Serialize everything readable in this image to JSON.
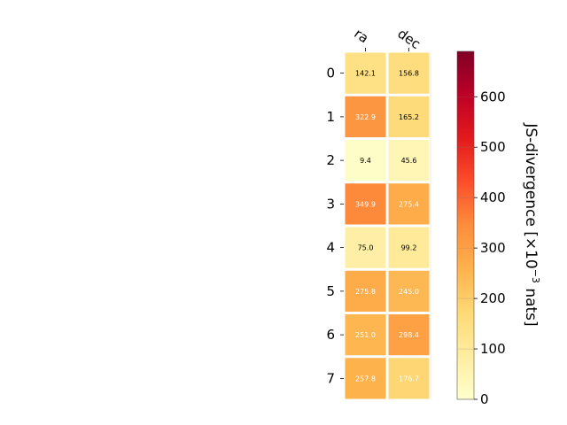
{
  "chart_data": {
    "type": "heatmap",
    "title": "",
    "columns": [
      "ra",
      "dec"
    ],
    "rows": [
      "0",
      "1",
      "2",
      "3",
      "4",
      "5",
      "6",
      "7"
    ],
    "values": [
      [
        142.1,
        156.8
      ],
      [
        322.9,
        165.2
      ],
      [
        9.4,
        45.6
      ],
      [
        349.9,
        275.4
      ],
      [
        75.0,
        99.2
      ],
      [
        275.8,
        245.0
      ],
      [
        251.0,
        298.4
      ],
      [
        257.8,
        176.7
      ]
    ],
    "colorbar": {
      "label_prefix": "JS-divergence [×10",
      "label_exponent": "−3",
      "label_suffix": " nats]",
      "min": 0,
      "max": 690,
      "ticks": [
        0,
        100,
        200,
        300,
        400,
        500,
        600
      ],
      "colormap": "YlOrRd"
    },
    "colors": {
      "cell_border": "#ffffff",
      "dark_text": "#000000",
      "light_text": "#ffffff"
    }
  }
}
